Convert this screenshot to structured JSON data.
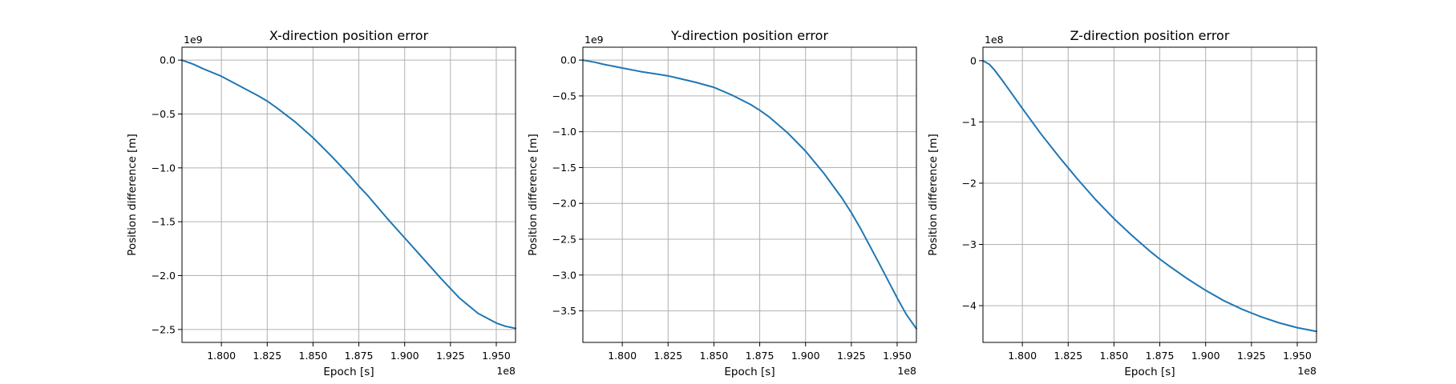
{
  "chart_data": [
    {
      "type": "line",
      "title": "X-direction position error",
      "xlabel": "Epoch [s]",
      "ylabel": "Position difference [m]",
      "x_offset_text": "1e8",
      "y_offset_text": "1e9",
      "xlim": [
        1.7785,
        1.9605
      ],
      "ylim": [
        -2.62,
        0.12
      ],
      "x_ticks": [
        1.8,
        1.825,
        1.85,
        1.875,
        1.9,
        1.925,
        1.95
      ],
      "x_tick_labels": [
        "1.800",
        "1.825",
        "1.850",
        "1.875",
        "1.900",
        "1.925",
        "1.950"
      ],
      "y_ticks": [
        0.0,
        -0.5,
        -1.0,
        -1.5,
        -2.0,
        -2.5
      ],
      "y_tick_labels": [
        "0.0",
        "−0.5",
        "−1.0",
        "−1.5",
        "−2.0",
        "−2.5"
      ],
      "grid": true,
      "color": "#1f77b4",
      "series": [
        {
          "x": [
            1.7785,
            1.785,
            1.79,
            1.8,
            1.81,
            1.82,
            1.825,
            1.83,
            1.84,
            1.85,
            1.86,
            1.87,
            1.875,
            1.88,
            1.89,
            1.9,
            1.91,
            1.92,
            1.925,
            1.93,
            1.94,
            1.95,
            1.955,
            1.9605
          ],
          "y": [
            0.0,
            -0.04,
            -0.08,
            -0.15,
            -0.24,
            -0.33,
            -0.38,
            -0.44,
            -0.57,
            -0.72,
            -0.89,
            -1.07,
            -1.17,
            -1.26,
            -1.46,
            -1.65,
            -1.84,
            -2.03,
            -2.12,
            -2.21,
            -2.35,
            -2.44,
            -2.47,
            -2.49
          ]
        }
      ]
    },
    {
      "type": "line",
      "title": "Y-direction position error",
      "xlabel": "Epoch [s]",
      "ylabel": "Position difference [m]",
      "x_offset_text": "1e8",
      "y_offset_text": "1e9",
      "xlim": [
        1.7785,
        1.9605
      ],
      "ylim": [
        -3.94,
        0.18
      ],
      "x_ticks": [
        1.8,
        1.825,
        1.85,
        1.875,
        1.9,
        1.925,
        1.95
      ],
      "x_tick_labels": [
        "1.800",
        "1.825",
        "1.850",
        "1.875",
        "1.900",
        "1.925",
        "1.950"
      ],
      "y_ticks": [
        0.0,
        -0.5,
        -1.0,
        -1.5,
        -2.0,
        -2.5,
        -3.0,
        -3.5
      ],
      "y_tick_labels": [
        "0.0",
        "−0.5",
        "−1.0",
        "−1.5",
        "−2.0",
        "−2.5",
        "−3.0",
        "−3.5"
      ],
      "grid": true,
      "color": "#1f77b4",
      "series": [
        {
          "x": [
            1.7785,
            1.785,
            1.79,
            1.8,
            1.81,
            1.82,
            1.825,
            1.83,
            1.84,
            1.85,
            1.86,
            1.87,
            1.875,
            1.88,
            1.89,
            1.9,
            1.91,
            1.92,
            1.925,
            1.93,
            1.94,
            1.95,
            1.955,
            1.9605
          ],
          "y": [
            0.0,
            -0.03,
            -0.06,
            -0.11,
            -0.16,
            -0.2,
            -0.22,
            -0.25,
            -0.31,
            -0.38,
            -0.49,
            -0.62,
            -0.7,
            -0.79,
            -1.01,
            -1.27,
            -1.58,
            -1.93,
            -2.13,
            -2.35,
            -2.83,
            -3.32,
            -3.55,
            -3.75
          ]
        }
      ]
    },
    {
      "type": "line",
      "title": "Z-direction position error",
      "xlabel": "Epoch [s]",
      "ylabel": "Position difference [m]",
      "x_offset_text": "1e8",
      "y_offset_text": "1e8",
      "xlim": [
        1.7785,
        1.9605
      ],
      "ylim": [
        -4.6,
        0.22
      ],
      "x_ticks": [
        1.8,
        1.825,
        1.85,
        1.875,
        1.9,
        1.925,
        1.95
      ],
      "x_tick_labels": [
        "1.800",
        "1.825",
        "1.850",
        "1.875",
        "1.900",
        "1.925",
        "1.950"
      ],
      "y_ticks": [
        0,
        -1,
        -2,
        -3,
        -4
      ],
      "y_tick_labels": [
        "0",
        "−1",
        "−2",
        "−3",
        "−4"
      ],
      "grid": true,
      "color": "#1f77b4",
      "series": [
        {
          "x": [
            1.7785,
            1.782,
            1.785,
            1.79,
            1.8,
            1.81,
            1.82,
            1.825,
            1.83,
            1.84,
            1.85,
            1.86,
            1.87,
            1.875,
            1.88,
            1.89,
            1.9,
            1.91,
            1.92,
            1.925,
            1.93,
            1.94,
            1.95,
            1.9605
          ],
          "y": [
            0.0,
            -0.06,
            -0.16,
            -0.36,
            -0.78,
            -1.19,
            -1.57,
            -1.75,
            -1.93,
            -2.27,
            -2.58,
            -2.86,
            -3.12,
            -3.24,
            -3.35,
            -3.56,
            -3.75,
            -3.92,
            -4.06,
            -4.12,
            -4.18,
            -4.28,
            -4.36,
            -4.42
          ]
        }
      ]
    }
  ]
}
